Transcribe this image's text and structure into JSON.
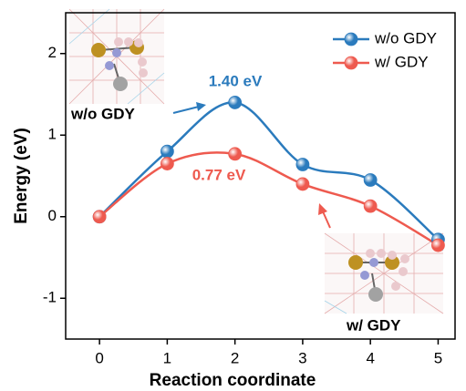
{
  "chart_data": {
    "type": "line",
    "x_label": "Reaction coordinate",
    "y_label": "Energy (eV)",
    "x": [
      0,
      1,
      2,
      3,
      4,
      5
    ],
    "series": [
      {
        "name": "w/o GDY",
        "color": "#2b7bbd",
        "values": [
          0,
          0.8,
          1.4,
          0.64,
          0.45,
          -0.28
        ]
      },
      {
        "name": "w/ GDY",
        "color": "#ee5a4f",
        "values": [
          0,
          0.65,
          0.77,
          0.4,
          0.13,
          -0.35
        ]
      }
    ],
    "xlim": [
      -0.5,
      5.25
    ],
    "ylim": [
      -1.5,
      2.5
    ],
    "xticks": [
      0,
      1,
      2,
      3,
      4,
      5
    ],
    "yticks": [
      -1,
      0,
      1,
      2
    ],
    "legend": "upper right",
    "annotations": [
      "1.40 eV",
      "0.77 eV",
      "w/o GDY",
      "w/ GDY"
    ]
  }
}
